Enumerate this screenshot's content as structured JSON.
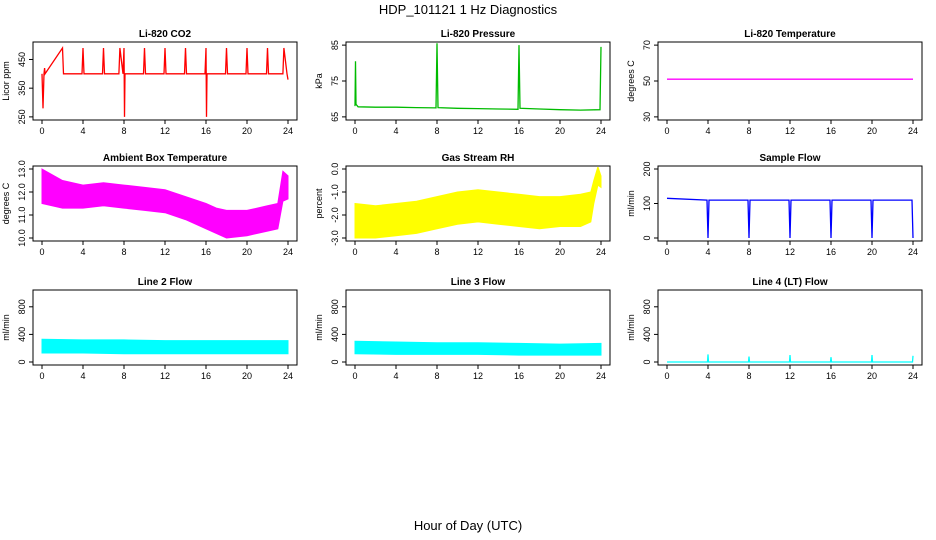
{
  "figure": {
    "title": "HDP_101121  1 Hz Diagnostics",
    "xlabel": "Hour of Day (UTC)"
  },
  "chart_data": [
    {
      "type": "line",
      "title": "Li-820 CO2",
      "ylabel": "Licor ppm",
      "color": "#ff0000",
      "xlim": [
        0,
        24
      ],
      "ylim": [
        250,
        500
      ],
      "xticks": [
        0,
        4,
        8,
        12,
        16,
        20,
        24
      ],
      "yticks": [
        250,
        350,
        450
      ],
      "series": [
        {
          "x": [
            0,
            0.1,
            0.2,
            0.25,
            0.3,
            2,
            2.1,
            3.9,
            4,
            4.1,
            5.9,
            6,
            6.1,
            7.5,
            7.6,
            7.9,
            8,
            8.05,
            8.1,
            9.9,
            10,
            10.1,
            11.9,
            12,
            12.1,
            13.9,
            14,
            14.1,
            15.9,
            16,
            16.05,
            16.1,
            17.9,
            18,
            18.1,
            19.9,
            20,
            20.1,
            21.9,
            22,
            22.1,
            23.5,
            23.6,
            23.9,
            24
          ],
          "y": [
            400,
            280,
            400,
            420,
            400,
            490,
            400,
            400,
            490,
            400,
            400,
            490,
            400,
            400,
            490,
            400,
            490,
            250,
            400,
            400,
            490,
            400,
            400,
            490,
            400,
            400,
            490,
            400,
            400,
            490,
            250,
            400,
            400,
            490,
            400,
            400,
            490,
            400,
            400,
            490,
            400,
            400,
            490,
            400,
            380
          ]
        }
      ]
    },
    {
      "type": "line",
      "title": "Li-820 Pressure",
      "ylabel": "kPa",
      "color": "#00bb00",
      "xlim": [
        0,
        24
      ],
      "ylim": [
        65,
        85
      ],
      "xticks": [
        0,
        4,
        8,
        12,
        16,
        20,
        24
      ],
      "yticks": [
        65,
        75,
        85
      ],
      "series": [
        {
          "x": [
            0,
            0.05,
            0.1,
            0.3,
            2,
            4,
            6,
            7.9,
            8,
            8.1,
            10,
            12,
            14,
            15.9,
            16,
            16.1,
            18,
            20,
            22,
            23.9,
            24
          ],
          "y": [
            68,
            80.5,
            68.5,
            67.8,
            67.7,
            67.7,
            67.6,
            67.5,
            85.5,
            67.6,
            67.4,
            67.3,
            67.2,
            67.1,
            85,
            67.4,
            67.2,
            67.0,
            66.9,
            67.0,
            84.5
          ]
        }
      ]
    },
    {
      "type": "line",
      "title": "Li-820 Temperature",
      "ylabel": "degrees C",
      "color": "#ff00ff",
      "xlim": [
        0,
        24
      ],
      "ylim": [
        30,
        70
      ],
      "xticks": [
        0,
        4,
        8,
        12,
        16,
        20,
        24
      ],
      "yticks": [
        30,
        50,
        70
      ],
      "series": [
        {
          "x": [
            0,
            24
          ],
          "y": [
            51,
            51
          ]
        }
      ]
    },
    {
      "type": "area",
      "title": "Ambient Box Temperature",
      "ylabel": "degrees C",
      "color": "#ff00ff",
      "xlim": [
        0,
        24
      ],
      "ylim": [
        10,
        13
      ],
      "xticks": [
        0,
        4,
        8,
        12,
        16,
        20,
        24
      ],
      "yticks": [
        10.0,
        11.0,
        12.0,
        13.0
      ],
      "y_tick_labels": [
        "10.0",
        "11.0",
        "12.0",
        "13.0"
      ],
      "series": [
        {
          "x": [
            0,
            2,
            4,
            6,
            8,
            10,
            12,
            14,
            16,
            17,
            18,
            20,
            22,
            23,
            23.5,
            24
          ],
          "y_low": [
            11.5,
            11.3,
            11.3,
            11.4,
            11.3,
            11.2,
            11.1,
            10.8,
            10.4,
            10.2,
            10.0,
            10.1,
            10.3,
            10.4,
            11.6,
            11.7
          ],
          "y_high": [
            13.0,
            12.5,
            12.3,
            12.4,
            12.3,
            12.2,
            12.1,
            11.8,
            11.5,
            11.3,
            11.2,
            11.2,
            11.4,
            11.5,
            12.9,
            12.7
          ]
        }
      ]
    },
    {
      "type": "area",
      "title": "Gas Stream RH",
      "ylabel": "percent",
      "color": "#ffff00",
      "xlim": [
        0,
        24
      ],
      "ylim": [
        -3,
        0
      ],
      "xticks": [
        0,
        4,
        8,
        12,
        16,
        20,
        24
      ],
      "yticks": [
        -3.0,
        -2.0,
        -1.0,
        0.0
      ],
      "y_tick_labels": [
        "-3.0",
        "-2.0",
        "-1.0",
        "0.0"
      ],
      "series": [
        {
          "x": [
            0,
            2,
            4,
            6,
            8,
            10,
            12,
            14,
            16,
            18,
            20,
            22,
            23,
            23.3,
            23.7,
            24
          ],
          "y_low": [
            -3.0,
            -3.0,
            -2.9,
            -2.8,
            -2.6,
            -2.4,
            -2.3,
            -2.4,
            -2.5,
            -2.6,
            -2.5,
            -2.5,
            -2.3,
            -1.5,
            -0.7,
            -0.8
          ],
          "y_high": [
            -1.5,
            -1.6,
            -1.5,
            -1.4,
            -1.2,
            -1.0,
            -0.9,
            -1.0,
            -1.1,
            -1.2,
            -1.2,
            -1.1,
            -1.0,
            -0.5,
            0.1,
            -0.3
          ]
        }
      ]
    },
    {
      "type": "line",
      "title": "Sample Flow",
      "ylabel": "ml/min",
      "color": "#0000ff",
      "xlim": [
        0,
        24
      ],
      "ylim": [
        0,
        200
      ],
      "xticks": [
        0,
        4,
        8,
        12,
        16,
        20,
        24
      ],
      "yticks": [
        0,
        100,
        200
      ],
      "series": [
        {
          "x": [
            0,
            3.9,
            4,
            4.1,
            7.9,
            8,
            8.1,
            11.9,
            12,
            12.1,
            15.9,
            16,
            16.1,
            19.9,
            20,
            20.1,
            23.9,
            24
          ],
          "y": [
            115,
            110,
            0,
            110,
            110,
            0,
            110,
            110,
            0,
            110,
            110,
            0,
            110,
            110,
            0,
            110,
            110,
            0
          ]
        }
      ]
    },
    {
      "type": "area",
      "title": "Line 2 Flow",
      "ylabel": "ml/min",
      "color": "#00ffff",
      "xlim": [
        0,
        24
      ],
      "ylim": [
        0,
        1000
      ],
      "xticks": [
        0,
        4,
        8,
        12,
        16,
        20,
        24
      ],
      "yticks": [
        0,
        400,
        800
      ],
      "series": [
        {
          "x": [
            0,
            3.9,
            4,
            8,
            12,
            16,
            20,
            23.9,
            24
          ],
          "y_low": [
            130,
            130,
            130,
            120,
            120,
            120,
            120,
            120,
            120
          ],
          "y_high": [
            330,
            320,
            320,
            320,
            310,
            310,
            310,
            310,
            310
          ]
        }
      ]
    },
    {
      "type": "area",
      "title": "Line 3 Flow",
      "ylabel": "ml/min",
      "color": "#00ffff",
      "xlim": [
        0,
        24
      ],
      "ylim": [
        0,
        1000
      ],
      "xticks": [
        0,
        4,
        8,
        12,
        16,
        20,
        24
      ],
      "yticks": [
        0,
        400,
        800
      ],
      "series": [
        {
          "x": [
            0,
            4,
            8,
            12,
            16,
            20,
            24
          ],
          "y_low": [
            120,
            110,
            110,
            110,
            100,
            100,
            100
          ],
          "y_high": [
            300,
            290,
            280,
            280,
            270,
            260,
            270
          ]
        }
      ]
    },
    {
      "type": "line",
      "title": "Line 4 (LT) Flow",
      "ylabel": "ml/min",
      "color": "#00ffff",
      "xlim": [
        0,
        24
      ],
      "ylim": [
        0,
        1000
      ],
      "xticks": [
        0,
        4,
        8,
        12,
        16,
        20,
        24
      ],
      "yticks": [
        0,
        400,
        800
      ],
      "series": [
        {
          "x": [
            0,
            3.95,
            4,
            4.05,
            7.95,
            8,
            8.05,
            11.95,
            12,
            12.05,
            15.95,
            16,
            16.05,
            19.95,
            20,
            20.05,
            23.95,
            24
          ],
          "y": [
            0,
            0,
            110,
            0,
            0,
            80,
            0,
            0,
            100,
            0,
            0,
            70,
            0,
            0,
            100,
            0,
            0,
            90
          ]
        }
      ]
    }
  ]
}
